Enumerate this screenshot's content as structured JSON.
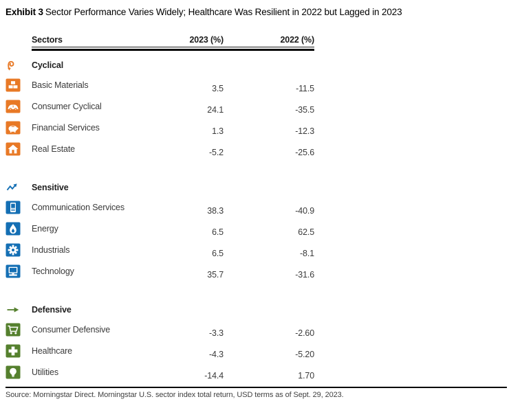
{
  "title": {
    "label": "Exhibit 3",
    "text": "Sector Performance Varies Widely; Healthcare Was Resilient in 2022 but Lagged in 2023"
  },
  "chart_data": {
    "type": "table",
    "title": "Exhibit 3 Sector Performance Varies Widely; Healthcare Was Resilient in 2022 but Lagged in 2023",
    "columns": [
      "Sectors",
      "2023 (%)",
      "2022 (%)"
    ],
    "groups": [
      {
        "name": "Cyclical",
        "icon": "cyclical-icon",
        "color": "#E87926",
        "rows": [
          {
            "label": "Basic Materials",
            "icon": "basic-materials-icon",
            "v2023": "3.5",
            "v2022": "-11.5"
          },
          {
            "label": "Consumer Cyclical",
            "icon": "consumer-cyclical-icon",
            "v2023": "24.1",
            "v2022": "-35.5"
          },
          {
            "label": "Financial Services",
            "icon": "financial-services-icon",
            "v2023": "1.3",
            "v2022": "-12.3"
          },
          {
            "label": "Real Estate",
            "icon": "real-estate-icon",
            "v2023": "-5.2",
            "v2022": "-25.6"
          }
        ]
      },
      {
        "name": "Sensitive",
        "icon": "sensitive-icon",
        "color": "#146FB4",
        "rows": [
          {
            "label": "Communication Services",
            "icon": "communication-services-icon",
            "v2023": "38.3",
            "v2022": "-40.9"
          },
          {
            "label": "Energy",
            "icon": "energy-icon",
            "v2023": "6.5",
            "v2022": "62.5"
          },
          {
            "label": "Industrials",
            "icon": "industrials-icon",
            "v2023": "6.5",
            "v2022": "-8.1"
          },
          {
            "label": "Technology",
            "icon": "technology-icon",
            "v2023": "35.7",
            "v2022": "-31.6"
          }
        ]
      },
      {
        "name": "Defensive",
        "icon": "defensive-icon",
        "color": "#55802E",
        "rows": [
          {
            "label": "Consumer Defensive",
            "icon": "consumer-defensive-icon",
            "v2023": "-3.3",
            "v2022": "-2.60"
          },
          {
            "label": "Healthcare",
            "icon": "healthcare-icon",
            "v2023": "-4.3",
            "v2022": "-5.20"
          },
          {
            "label": "Utilities",
            "icon": "utilities-icon",
            "v2023": "-14.4",
            "v2022": "1.70"
          }
        ]
      }
    ]
  },
  "source": "Source: Morningstar Direct. Morningstar U.S. sector index total return, USD terms as of Sept. 29, 2023."
}
